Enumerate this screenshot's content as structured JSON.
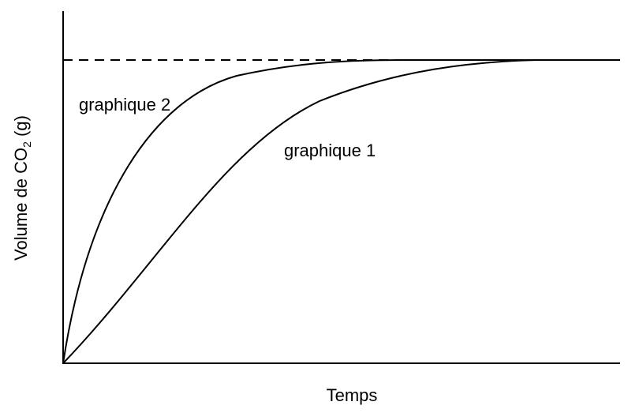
{
  "axes": {
    "x_label": "Temps",
    "y_label": {
      "main": "Volume de  CO",
      "subscript": "2",
      "unit": " (g)"
    }
  },
  "curves": [
    {
      "label": "graphique 1"
    },
    {
      "label": "graphique 2"
    }
  ]
}
